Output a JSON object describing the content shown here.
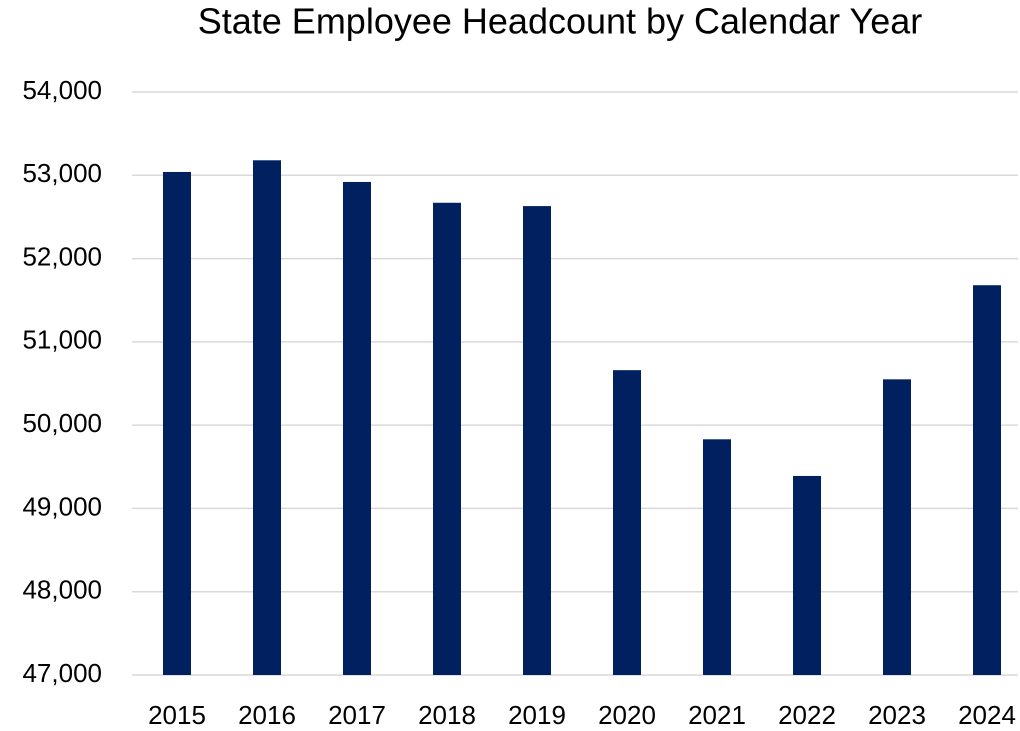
{
  "chart_data": {
    "type": "bar",
    "title": "State Employee Headcount by Calendar Year",
    "categories": [
      "2015",
      "2016",
      "2017",
      "2018",
      "2019",
      "2020",
      "2021",
      "2022",
      "2023",
      "2024"
    ],
    "values": [
      53040,
      53180,
      52920,
      52670,
      52630,
      50660,
      49830,
      49390,
      50550,
      51680
    ],
    "color": "#002060",
    "ylim": [
      47000,
      54000
    ],
    "yticks": [
      {
        "value": 47000,
        "label": "47,000"
      },
      {
        "value": 48000,
        "label": "48,000"
      },
      {
        "value": 49000,
        "label": "49,000"
      },
      {
        "value": 50000,
        "label": "50,000"
      },
      {
        "value": 51000,
        "label": "51,000"
      },
      {
        "value": 52000,
        "label": "52,000"
      },
      {
        "value": 53000,
        "label": "53,000"
      },
      {
        "value": 54000,
        "label": "54,000"
      }
    ],
    "grid": true
  }
}
